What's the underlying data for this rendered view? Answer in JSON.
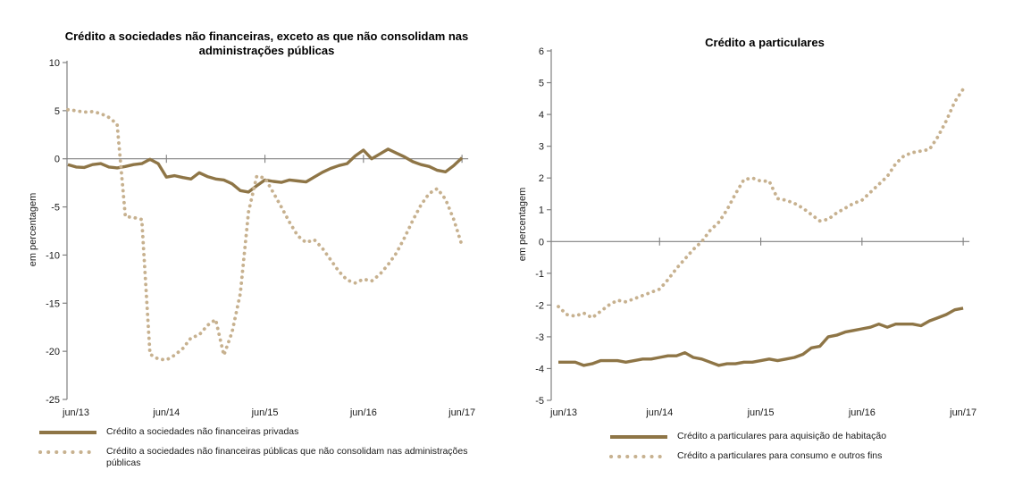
{
  "text_color": "#1a1a1a",
  "chart_data": [
    {
      "type": "line",
      "title": "Crédito a sociedades não financeiras, exceto as que não consolidam nas administrações públicas",
      "ylabel": "em percentagem",
      "x_tick_labels": [
        "jun/13",
        "jun/14",
        "jun/15",
        "jun/16",
        "jun/17"
      ],
      "x_frequency": "monthly",
      "ylim": [
        -25,
        10
      ],
      "yticks": [
        10,
        5,
        0,
        -5,
        -10,
        -15,
        -20,
        -25
      ],
      "grid": false,
      "legend_position": "bottom",
      "axis_color": "#808080",
      "series": [
        {
          "name": "Crédito a sociedades não financeiras privadas",
          "style": "solid",
          "color": "#8E7546",
          "values": [
            -0.6,
            -0.85,
            -0.9,
            -0.6,
            -0.5,
            -0.85,
            -0.95,
            -0.8,
            -0.6,
            -0.5,
            -0.05,
            -0.5,
            -1.9,
            -1.75,
            -1.95,
            -2.1,
            -1.45,
            -1.85,
            -2.1,
            -2.2,
            -2.6,
            -3.3,
            -3.45,
            -2.8,
            -2.2,
            -2.35,
            -2.45,
            -2.2,
            -2.3,
            -2.4,
            -1.9,
            -1.4,
            -1.0,
            -0.7,
            -0.5,
            0.3,
            0.9,
            0.0,
            0.5,
            1.0,
            0.6,
            0.2,
            -0.3,
            -0.6,
            -0.8,
            -1.2,
            -1.35,
            -0.7,
            0.1
          ]
        },
        {
          "name": "Crédito a sociedades não financeiras públicas que não consolidam nas administrações públicas",
          "style": "dotted",
          "color": "#C7B18F",
          "values": [
            5.1,
            5.0,
            4.85,
            4.9,
            4.7,
            4.3,
            3.6,
            -6.0,
            -6.1,
            -6.3,
            -20.3,
            -20.8,
            -20.9,
            -20.4,
            -19.7,
            -18.6,
            -18.3,
            -17.3,
            -16.7,
            -20.4,
            -18.0,
            -14.0,
            -5.5,
            -1.8,
            -2.0,
            -3.5,
            -5.0,
            -6.6,
            -8.0,
            -8.7,
            -8.4,
            -9.3,
            -10.5,
            -11.7,
            -12.6,
            -12.9,
            -12.5,
            -12.7,
            -12.0,
            -11.0,
            -9.8,
            -8.2,
            -6.4,
            -4.8,
            -3.6,
            -3.1,
            -4.2,
            -6.3,
            -9.0
          ]
        }
      ]
    },
    {
      "type": "line",
      "title": "Crédito a particulares",
      "ylabel": "em percentagem",
      "x_tick_labels": [
        "jun/13",
        "jun/14",
        "jun/15",
        "jun/16",
        "jun/17"
      ],
      "x_frequency": "monthly",
      "ylim": [
        -5,
        6
      ],
      "yticks": [
        6,
        5,
        4,
        3,
        2,
        1,
        0,
        -1,
        -2,
        -3,
        -4,
        -5
      ],
      "grid": false,
      "legend_position": "bottom",
      "axis_color": "#808080",
      "series": [
        {
          "name": "Crédito a particulares para aquisição de habitação",
          "style": "solid",
          "color": "#8E7546",
          "values": [
            -3.8,
            -3.8,
            -3.8,
            -3.9,
            -3.85,
            -3.75,
            -3.75,
            -3.75,
            -3.8,
            -3.75,
            -3.7,
            -3.7,
            -3.65,
            -3.6,
            -3.6,
            -3.5,
            -3.65,
            -3.7,
            -3.8,
            -3.9,
            -3.85,
            -3.85,
            -3.8,
            -3.8,
            -3.75,
            -3.7,
            -3.75,
            -3.7,
            -3.65,
            -3.55,
            -3.35,
            -3.3,
            -3.0,
            -2.95,
            -2.85,
            -2.8,
            -2.75,
            -2.7,
            -2.6,
            -2.7,
            -2.6,
            -2.6,
            -2.6,
            -2.65,
            -2.5,
            -2.4,
            -2.3,
            -2.15,
            -2.1
          ]
        },
        {
          "name": "Crédito a particulares para consumo e outros fins",
          "style": "dotted",
          "color": "#C7B18F",
          "values": [
            -2.05,
            -2.3,
            -2.35,
            -2.25,
            -2.4,
            -2.2,
            -2.0,
            -1.85,
            -1.9,
            -1.8,
            -1.7,
            -1.6,
            -1.5,
            -1.2,
            -0.85,
            -0.55,
            -0.25,
            0.0,
            0.35,
            0.6,
            1.0,
            1.5,
            1.95,
            2.0,
            1.9,
            1.9,
            1.35,
            1.3,
            1.2,
            1.05,
            0.85,
            0.65,
            0.7,
            0.9,
            1.05,
            1.2,
            1.3,
            1.55,
            1.8,
            2.05,
            2.45,
            2.7,
            2.8,
            2.85,
            2.9,
            3.3,
            3.8,
            4.4,
            4.8
          ]
        }
      ]
    }
  ]
}
